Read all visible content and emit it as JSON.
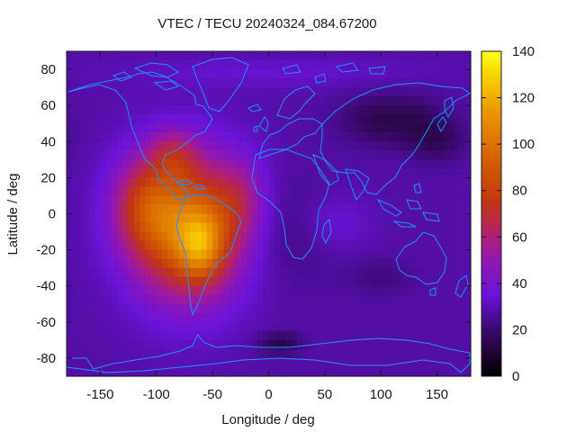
{
  "chart_data": {
    "type": "heatmap",
    "title": "VTEC / TECU 20240324_084.67200",
    "xlabel": "Longitude / deg",
    "ylabel": "Latitude / deg",
    "xlim": [
      -180,
      180
    ],
    "ylim": [
      -90,
      90
    ],
    "x_ticks": [
      -150,
      -100,
      -50,
      0,
      50,
      100,
      150
    ],
    "y_ticks": [
      -80,
      -60,
      -40,
      -20,
      0,
      20,
      40,
      60,
      80
    ],
    "colorbar": {
      "min": 0,
      "max": 140,
      "ticks": [
        0,
        20,
        40,
        60,
        80,
        100,
        120,
        140
      ],
      "stops": [
        {
          "v": 0,
          "color": "#000000"
        },
        {
          "v": 10,
          "color": "#1e0533"
        },
        {
          "v": 20,
          "color": "#3a0a6e"
        },
        {
          "v": 35,
          "color": "#6b12d9"
        },
        {
          "v": 50,
          "color": "#9418b0"
        },
        {
          "v": 62,
          "color": "#b3226a"
        },
        {
          "v": 75,
          "color": "#c23412"
        },
        {
          "v": 95,
          "color": "#d66500"
        },
        {
          "v": 115,
          "color": "#eb9a00"
        },
        {
          "v": 130,
          "color": "#f9d400"
        },
        {
          "v": 140,
          "color": "#ffff1a"
        }
      ]
    },
    "field": {
      "background": 28,
      "features": [
        {
          "lon": -72,
          "lat": -8,
          "slon": 48,
          "slat": 38,
          "amp": 72
        },
        {
          "lon": -60,
          "lat": -18,
          "slon": 20,
          "slat": 18,
          "amp": 34
        },
        {
          "lon": -112,
          "lat": 5,
          "slon": 28,
          "slat": 26,
          "amp": 30
        },
        {
          "lon": -85,
          "lat": 33,
          "slon": 22,
          "slat": 14,
          "amp": 22
        },
        {
          "lon": -25,
          "lat": 8,
          "slon": 22,
          "slat": 22,
          "amp": 18
        },
        {
          "lon": 15,
          "lat": -10,
          "slon": 45,
          "slat": 30,
          "amp": -6
        },
        {
          "lon": 110,
          "lat": 52,
          "slon": 45,
          "slat": 14,
          "amp": -14
        },
        {
          "lon": 150,
          "lat": 40,
          "slon": 25,
          "slat": 12,
          "amp": -10
        },
        {
          "lon": 100,
          "lat": -35,
          "slon": 30,
          "slat": 10,
          "amp": -6
        },
        {
          "lon": 10,
          "lat": -72,
          "slon": 20,
          "slat": 6,
          "amp": -14
        },
        {
          "lon": 0,
          "lat": 78,
          "slon": 120,
          "slat": 8,
          "amp": 6
        },
        {
          "lon": 60,
          "lat": -5,
          "slon": 30,
          "slat": 15,
          "amp": 8
        }
      ]
    },
    "coastline_color": "#1e90ff"
  }
}
